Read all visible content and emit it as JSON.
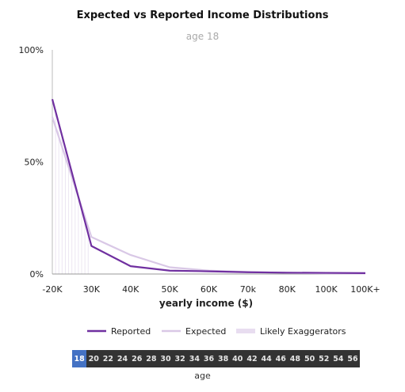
{
  "chart_data": {
    "type": "line",
    "title": "Expected vs Reported Income Distributions",
    "subtitle": "age 18",
    "xlabel": "yearly income ($)",
    "ylabel": "",
    "categories": [
      "-20K",
      "30K",
      "40K",
      "50K",
      "60K",
      "70k",
      "80K",
      "100K",
      "100K+"
    ],
    "yticks": [
      "0%",
      "50%",
      "100%"
    ],
    "ylim": [
      0,
      100
    ],
    "series": [
      {
        "name": "Reported",
        "color": "#7030a0",
        "values": [
          78,
          12.5,
          3.5,
          1.5,
          1.2,
          0.8,
          0.6,
          0.5,
          0.4
        ]
      },
      {
        "name": "Expected",
        "color": "#d9c8e6",
        "values": [
          70,
          16.5,
          8.5,
          3,
          1.5,
          0.9,
          0.5,
          0.3,
          0.2
        ]
      }
    ],
    "legend": [
      {
        "name": "Reported",
        "color": "#7030a0"
      },
      {
        "name": "Expected",
        "color": "#d9c8e6"
      },
      {
        "name": "Likely Exaggerators",
        "color": "#e8ddf0"
      }
    ],
    "legend_position": "bottom",
    "grid": false
  },
  "age_selector": {
    "ages": [
      "18",
      "20",
      "22",
      "24",
      "26",
      "28",
      "30",
      "32",
      "34",
      "36",
      "38",
      "40",
      "42",
      "44",
      "46",
      "48",
      "50",
      "52",
      "54",
      "56"
    ],
    "selected": "18",
    "label": "age",
    "colors": {
      "bar": "#333333",
      "active": "#4472c4"
    }
  }
}
